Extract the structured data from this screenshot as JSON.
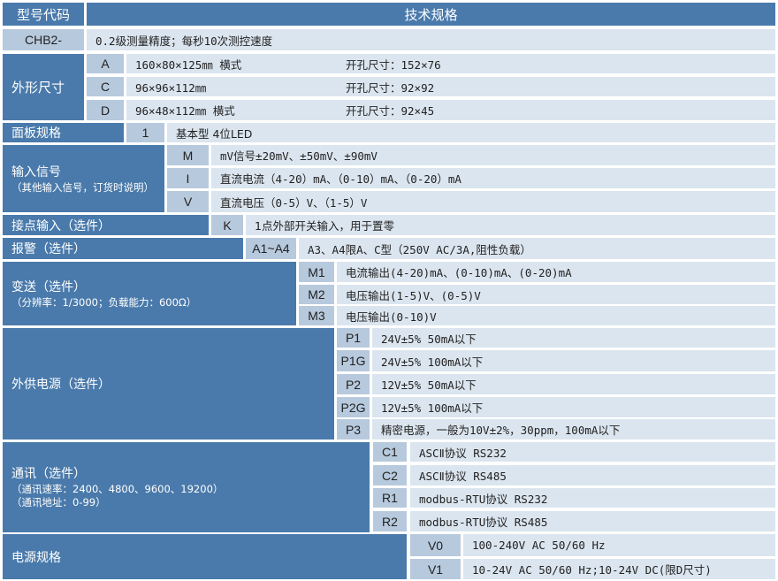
{
  "header": {
    "model_code": "型号代码",
    "spec": "技术规格"
  },
  "base": {
    "code": "CHB2-",
    "desc": "0.2级测量精度；每秒10次测控速度"
  },
  "dimensions": {
    "label": "外形尺寸",
    "items": [
      {
        "code": "A",
        "size": "160×80×125㎜ 横式",
        "cutout": "开孔尺寸：152×76"
      },
      {
        "code": "C",
        "size": "96×96×112㎜",
        "cutout": "开孔尺寸：92×92"
      },
      {
        "code": "D",
        "size": "96×48×112㎜ 横式",
        "cutout": "开孔尺寸：92×45"
      }
    ]
  },
  "panel": {
    "label": "面板规格",
    "items": [
      {
        "code": "1",
        "desc": "基本型 4位LED"
      }
    ]
  },
  "input": {
    "label": "输入信号",
    "note": "（其他输入信号，订货时说明）",
    "items": [
      {
        "code": "M",
        "desc": "mV信号±20mV、±50mV、±90mV"
      },
      {
        "code": "I",
        "desc": "直流电流（4-20）mA、（0-10）mA、（0-20）mA"
      },
      {
        "code": "V",
        "desc": "直流电压（0-5）V、（1-5）V"
      }
    ]
  },
  "contact": {
    "label": "接点输入（选件）",
    "items": [
      {
        "code": "K",
        "desc": "1点外部开关输入，用于置零"
      }
    ]
  },
  "alarm": {
    "label": "报警（选件）",
    "items": [
      {
        "code": "A1~A4",
        "desc": "A3、A4限A、C型（250V AC/3A,阻性负载）"
      }
    ]
  },
  "transmit": {
    "label": "变送（选件）",
    "note": "（分辨率：1/3000；负载能力：600Ω）",
    "items": [
      {
        "code": "M1",
        "desc": "电流输出(4-20)mA、(0-10)mA、(0-20)mA"
      },
      {
        "code": "M2",
        "desc": "电压输出(1-5)V、(0-5)V"
      },
      {
        "code": "M3",
        "desc": "电压输出(0-10)V"
      }
    ]
  },
  "aux_power": {
    "label": "外供电源（选件）",
    "items": [
      {
        "code": "P1",
        "desc": "24V±5% 50mA以下"
      },
      {
        "code": "P1G",
        "desc": "24V±5% 100mA以下"
      },
      {
        "code": "P2",
        "desc": "12V±5% 50mA以下"
      },
      {
        "code": "P2G",
        "desc": "12V±5% 100mA以下"
      },
      {
        "code": "P3",
        "desc": "精密电源，一般为10V±2%，30ppm，100mA以下"
      }
    ]
  },
  "comm": {
    "label": "通讯（选件）",
    "note1": "（通讯速率：2400、4800、9600、19200）",
    "note2": "（通讯地址：0-99）",
    "items": [
      {
        "code": "C1",
        "desc": "ASCⅡ协议 RS232"
      },
      {
        "code": "C2",
        "desc": "ASCⅡ协议 RS485"
      },
      {
        "code": "R1",
        "desc": "modbus-RTU协议 RS232"
      },
      {
        "code": "R2",
        "desc": "modbus-RTU协议 RS485"
      }
    ]
  },
  "power": {
    "label": "电源规格",
    "items": [
      {
        "code": "V0",
        "desc": "100-240V AC 50/60 Hz"
      },
      {
        "code": "V1",
        "desc": "10-24V AC 50/60 Hz;10-24V DC(限D尺寸)"
      }
    ]
  },
  "colors": {
    "dark": "#4a7aab",
    "code": "#b7c9dd",
    "value": "#dbe5ef"
  }
}
